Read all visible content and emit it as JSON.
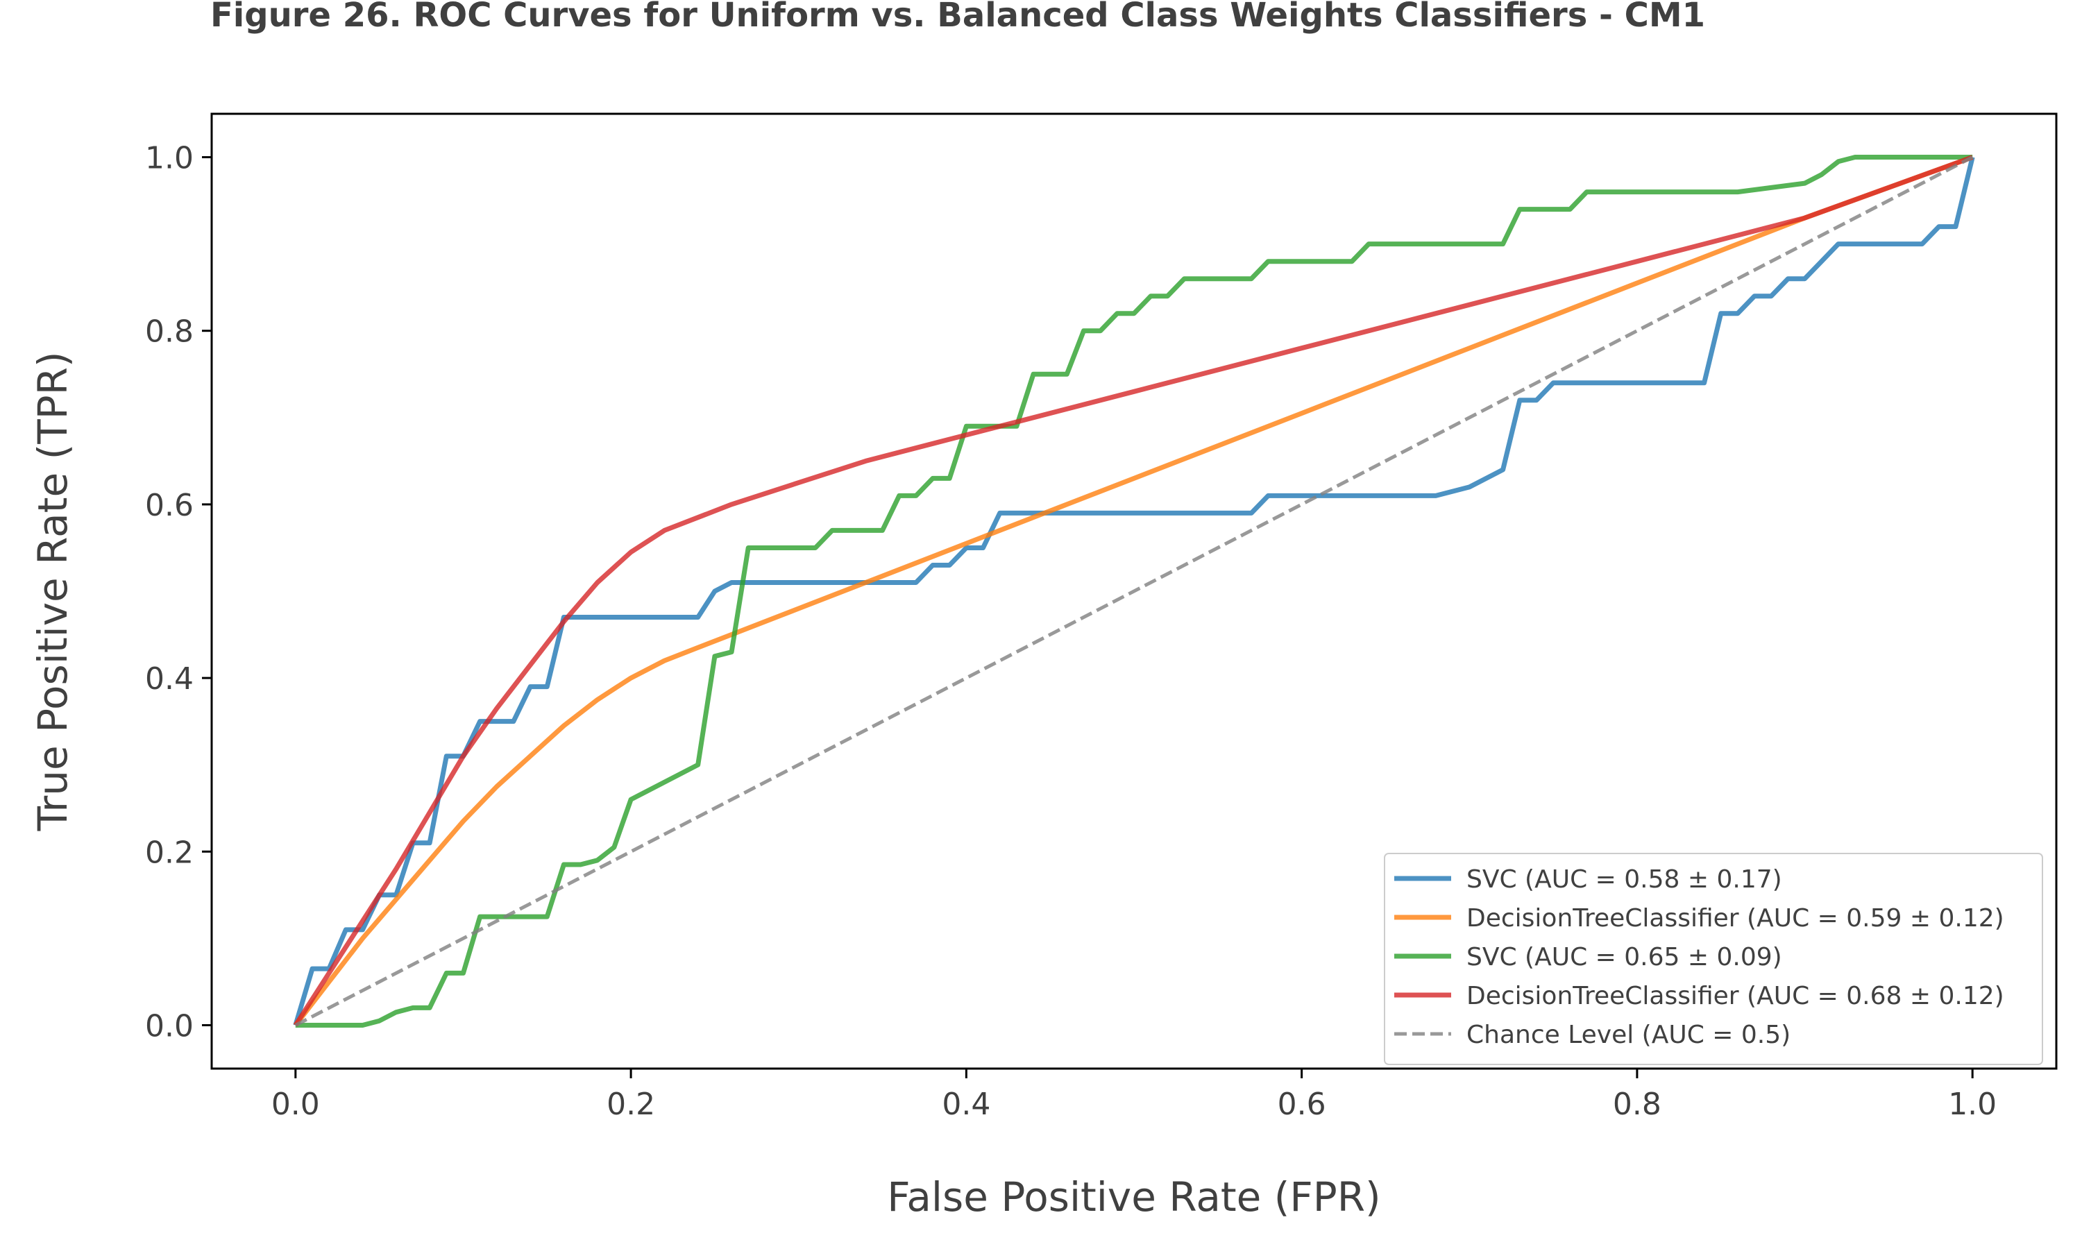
{
  "chart_data": {
    "type": "line",
    "title": "Figure 26. ROC Curves for Uniform vs. Balanced Class Weights Classifiers - CM1",
    "xlabel": "False Positive Rate (FPR)",
    "ylabel": "True Positive Rate (TPR)",
    "xlim": [
      -0.05,
      1.05
    ],
    "ylim": [
      -0.05,
      1.05
    ],
    "xticks": [
      "0.0",
      "0.2",
      "0.4",
      "0.6",
      "0.8",
      "1.0"
    ],
    "yticks": [
      "0.0",
      "0.2",
      "0.4",
      "0.6",
      "0.8",
      "1.0"
    ],
    "grid": false,
    "legend_position": "lower-right",
    "series": [
      {
        "name": "SVC (AUC = 0.58 ± 0.17)",
        "color": "#1f77b4",
        "dashed": false,
        "x": [
          0,
          0.01,
          0.02,
          0.03,
          0.04,
          0.05,
          0.06,
          0.07,
          0.08,
          0.09,
          0.1,
          0.11,
          0.12,
          0.13,
          0.14,
          0.15,
          0.16,
          0.17,
          0.24,
          0.25,
          0.26,
          0.37,
          0.38,
          0.39,
          0.4,
          0.41,
          0.42,
          0.57,
          0.58,
          0.68,
          0.7,
          0.72,
          0.73,
          0.74,
          0.75,
          0.76,
          0.84,
          0.85,
          0.86,
          0.87,
          0.88,
          0.89,
          0.9,
          0.91,
          0.92,
          0.93,
          0.97,
          0.98,
          0.99,
          1.0
        ],
        "y": [
          0,
          0.065,
          0.065,
          0.11,
          0.11,
          0.15,
          0.15,
          0.21,
          0.21,
          0.31,
          0.31,
          0.35,
          0.35,
          0.35,
          0.39,
          0.39,
          0.47,
          0.47,
          0.47,
          0.5,
          0.51,
          0.51,
          0.53,
          0.53,
          0.55,
          0.55,
          0.59,
          0.59,
          0.61,
          0.61,
          0.62,
          0.64,
          0.72,
          0.72,
          0.74,
          0.74,
          0.74,
          0.82,
          0.82,
          0.84,
          0.84,
          0.86,
          0.86,
          0.88,
          0.9,
          0.9,
          0.9,
          0.92,
          0.92,
          1.0
        ]
      },
      {
        "name": "DecisionTreeClassifier (AUC = 0.59 ± 0.12)",
        "color": "#ff7f0e",
        "dashed": false,
        "x": [
          0,
          0.02,
          0.04,
          0.06,
          0.08,
          0.1,
          0.12,
          0.14,
          0.16,
          0.18,
          0.2,
          0.22,
          0.24,
          0.26,
          0.3,
          0.34,
          0.38,
          0.42,
          0.46,
          0.5,
          0.6,
          0.7,
          0.8,
          0.9,
          1.0
        ],
        "y": [
          0,
          0.05,
          0.1,
          0.145,
          0.19,
          0.235,
          0.275,
          0.31,
          0.345,
          0.375,
          0.4,
          0.42,
          0.435,
          0.45,
          0.48,
          0.51,
          0.54,
          0.57,
          0.6,
          0.63,
          0.705,
          0.78,
          0.855,
          0.93,
          1.0
        ]
      },
      {
        "name": "SVC (AUC = 0.65 ± 0.09)",
        "color": "#2ca02c",
        "dashed": false,
        "x": [
          0,
          0.04,
          0.05,
          0.06,
          0.07,
          0.08,
          0.09,
          0.1,
          0.11,
          0.12,
          0.15,
          0.16,
          0.17,
          0.18,
          0.19,
          0.2,
          0.24,
          0.25,
          0.26,
          0.27,
          0.28,
          0.31,
          0.32,
          0.35,
          0.36,
          0.37,
          0.38,
          0.39,
          0.4,
          0.41,
          0.43,
          0.44,
          0.46,
          0.47,
          0.48,
          0.49,
          0.5,
          0.51,
          0.52,
          0.53,
          0.57,
          0.58,
          0.63,
          0.64,
          0.72,
          0.73,
          0.76,
          0.77,
          0.85,
          0.86,
          0.9,
          0.91,
          0.92,
          0.93,
          1.0
        ],
        "y": [
          0,
          0,
          0.005,
          0.015,
          0.02,
          0.02,
          0.06,
          0.06,
          0.125,
          0.125,
          0.125,
          0.185,
          0.185,
          0.19,
          0.205,
          0.26,
          0.3,
          0.425,
          0.43,
          0.55,
          0.55,
          0.55,
          0.57,
          0.57,
          0.61,
          0.61,
          0.63,
          0.63,
          0.69,
          0.69,
          0.69,
          0.75,
          0.75,
          0.8,
          0.8,
          0.82,
          0.82,
          0.84,
          0.84,
          0.86,
          0.86,
          0.88,
          0.88,
          0.9,
          0.9,
          0.94,
          0.94,
          0.96,
          0.96,
          0.96,
          0.97,
          0.98,
          0.995,
          1.0,
          1.0
        ]
      },
      {
        "name": "DecisionTreeClassifier (AUC = 0.68 ± 0.12)",
        "color": "#d62728",
        "dashed": false,
        "x": [
          0,
          0.02,
          0.04,
          0.06,
          0.08,
          0.1,
          0.12,
          0.14,
          0.16,
          0.18,
          0.2,
          0.22,
          0.24,
          0.26,
          0.3,
          0.34,
          0.38,
          0.42,
          0.5,
          0.6,
          0.7,
          0.8,
          0.9,
          1.0
        ],
        "y": [
          0,
          0.06,
          0.12,
          0.18,
          0.245,
          0.31,
          0.365,
          0.415,
          0.465,
          0.51,
          0.545,
          0.57,
          0.585,
          0.6,
          0.625,
          0.65,
          0.67,
          0.69,
          0.73,
          0.78,
          0.83,
          0.88,
          0.93,
          1.0
        ]
      },
      {
        "name": "Chance Level (AUC = 0.5)",
        "color": "#7f7f7f",
        "dashed": true,
        "x": [
          0,
          1
        ],
        "y": [
          0,
          1
        ]
      }
    ]
  }
}
